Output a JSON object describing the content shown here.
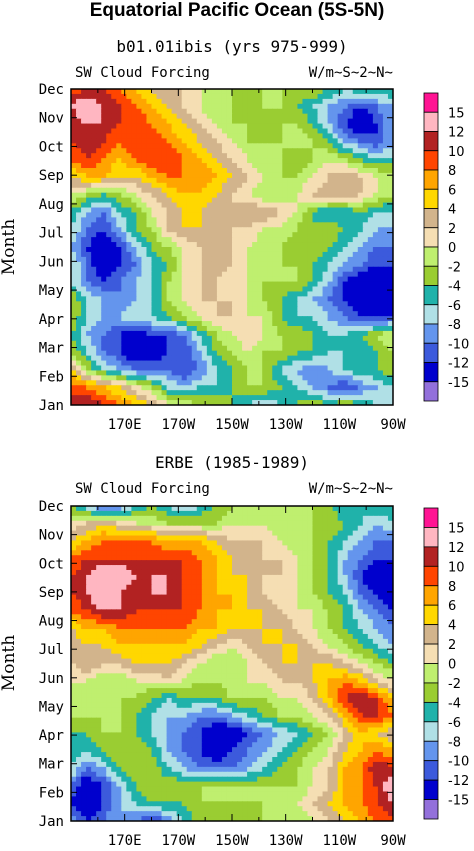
{
  "page_title": "Equatorial Pacific Ocean (5S-5N)",
  "colors": {
    "levels": [
      "#9370db",
      "#0000cd",
      "#3c5adc",
      "#6495ed",
      "#b0e0e6",
      "#20b2aa",
      "#9acd32",
      "#bfef6f",
      "#f5deb3",
      "#d2b48c",
      "#ffd700",
      "#ffa500",
      "#ff4500",
      "#b22222",
      "#ffb6c1",
      "#ff1493"
    ]
  },
  "chart_data": [
    {
      "type": "contour",
      "title": "b01.01ibis (yrs 975-999)",
      "left_label": "SW Cloud Forcing",
      "right_label": "W/m~S~2~N~",
      "ylabel": "Month",
      "x_ticks": [
        "170E",
        "170W",
        "150W",
        "130W",
        "110W",
        "90W"
      ],
      "y_ticks": [
        "Jan",
        "Feb",
        "Mar",
        "Apr",
        "May",
        "Jun",
        "Jul",
        "Aug",
        "Sep",
        "Oct",
        "Nov",
        "Dec"
      ],
      "colorbar_labels": [
        "15",
        "12",
        "10",
        "8",
        "6",
        "4",
        "2",
        "0",
        "-2",
        "-4",
        "-6",
        "-8",
        "-10",
        "-12",
        "-15"
      ],
      "grid_rows_month_jan_to_dec": [
        [
          10,
          12,
          10,
          8,
          6,
          4,
          1,
          0,
          -2,
          -2,
          -4,
          -6,
          -8,
          -6,
          -4,
          -2,
          -4,
          -2,
          -4,
          -6,
          -6
        ],
        [
          10,
          8,
          6,
          4,
          1,
          -2,
          -6,
          -8,
          -6,
          -6,
          -4,
          -2,
          -2,
          -4,
          -6,
          -8,
          -10,
          -12,
          -10,
          -8,
          -6
        ],
        [
          4,
          -2,
          -6,
          -8,
          -10,
          -10,
          -10,
          -12,
          -10,
          -6,
          -4,
          -2,
          -2,
          -6,
          -8,
          -10,
          -8,
          -6,
          -4,
          -4,
          -2
        ],
        [
          -2,
          -6,
          -10,
          -12,
          -15,
          -15,
          -12,
          -12,
          -8,
          -4,
          -2,
          0,
          -2,
          -2,
          -4,
          -4,
          -6,
          -6,
          -6,
          -4,
          -2
        ],
        [
          -4,
          -8,
          -10,
          -12,
          -15,
          -12,
          -12,
          -10,
          -6,
          -2,
          0,
          2,
          0,
          -2,
          -2,
          -4,
          -6,
          -6,
          -4,
          -2,
          0
        ],
        [
          -2,
          -6,
          -8,
          -8,
          -6,
          -6,
          -4,
          -2,
          0,
          2,
          2,
          0,
          0,
          -4,
          -6,
          -6,
          -8,
          -10,
          -12,
          -12,
          -12
        ],
        [
          -2,
          -6,
          -8,
          -10,
          -8,
          -6,
          -2,
          0,
          2,
          2,
          2,
          0,
          -2,
          -4,
          -6,
          -8,
          -10,
          -12,
          -15,
          -15,
          -15
        ],
        [
          -6,
          -10,
          -12,
          -10,
          -8,
          -6,
          -2,
          0,
          2,
          2,
          0,
          0,
          -2,
          -2,
          -2,
          -4,
          -8,
          -12,
          -15,
          -15,
          -15
        ],
        [
          -6,
          -10,
          -15,
          -12,
          -10,
          -6,
          -4,
          0,
          2,
          4,
          2,
          0,
          -2,
          -2,
          -2,
          -4,
          -6,
          -8,
          -10,
          -12,
          -12
        ],
        [
          -8,
          -12,
          -15,
          -12,
          -8,
          -4,
          -2,
          0,
          2,
          4,
          2,
          0,
          -2,
          -2,
          -4,
          -2,
          -4,
          -6,
          -8,
          -10,
          -10
        ],
        [
          -6,
          -10,
          -12,
          -8,
          -4,
          -2,
          2,
          4,
          4,
          4,
          2,
          2,
          0,
          0,
          -2,
          -4,
          -2,
          -4,
          -6,
          -8,
          -8
        ],
        [
          -4,
          -8,
          -10,
          -6,
          -4,
          0,
          2,
          4,
          4,
          2,
          2,
          4,
          4,
          2,
          0,
          -4,
          -6,
          -6,
          -4,
          -6,
          -6
        ],
        [
          0,
          -2,
          -4,
          -2,
          0,
          2,
          4,
          6,
          6,
          4,
          2,
          0,
          -2,
          -2,
          0,
          2,
          4,
          4,
          2,
          0,
          -2
        ],
        [
          4,
          6,
          6,
          4,
          4,
          6,
          8,
          8,
          8,
          6,
          4,
          2,
          0,
          -2,
          -2,
          0,
          2,
          4,
          2,
          0,
          0
        ],
        [
          8,
          10,
          8,
          6,
          8,
          10,
          10,
          8,
          6,
          4,
          2,
          0,
          -2,
          -2,
          -4,
          -2,
          0,
          -2,
          -4,
          -6,
          -6
        ],
        [
          10,
          12,
          10,
          8,
          10,
          10,
          8,
          6,
          4,
          2,
          0,
          -2,
          -2,
          -2,
          0,
          -2,
          -4,
          -8,
          -10,
          -12,
          -8
        ],
        [
          10,
          12,
          12,
          10,
          10,
          8,
          6,
          4,
          2,
          0,
          -2,
          -2,
          -4,
          -2,
          -2,
          -4,
          -8,
          -12,
          -15,
          -12,
          -8
        ],
        [
          12,
          15,
          12,
          10,
          8,
          6,
          4,
          2,
          0,
          -2,
          -2,
          -4,
          -2,
          -2,
          -4,
          -6,
          -8,
          -10,
          -12,
          -10,
          -8
        ],
        [
          8,
          10,
          10,
          8,
          6,
          4,
          2,
          2,
          0,
          -2,
          -2,
          -2,
          -2,
          -2,
          -2,
          -2,
          -4,
          -6,
          -4,
          -4,
          -4
        ]
      ]
    },
    {
      "type": "contour",
      "title": "ERBE (1985-1989)",
      "left_label": "SW Cloud Forcing",
      "right_label": "W/m~S~2~N~",
      "ylabel": "Month",
      "x_ticks": [
        "170E",
        "170W",
        "150W",
        "130W",
        "110W",
        "90W"
      ],
      "y_ticks": [
        "Jan",
        "Feb",
        "Mar",
        "Apr",
        "May",
        "Jun",
        "Jul",
        "Aug",
        "Sep",
        "Oct",
        "Nov",
        "Dec"
      ],
      "colorbar_labels": [
        "15",
        "12",
        "10",
        "8",
        "6",
        "4",
        "2",
        "0",
        "-2",
        "-4",
        "-6",
        "-8",
        "-10",
        "-12",
        "-15"
      ],
      "grid_rows_month_jan_to_dec": [
        [
          -8,
          -12,
          -10,
          -8,
          -10,
          -12,
          -10,
          -6,
          -2,
          -4,
          -4,
          -4,
          -2,
          -2,
          -2,
          0,
          2,
          4,
          6,
          8,
          10
        ],
        [
          -12,
          -15,
          -12,
          -8,
          -6,
          -4,
          -4,
          -4,
          -2,
          -2,
          -2,
          -2,
          -2,
          -2,
          0,
          2,
          4,
          6,
          8,
          10,
          12
        ],
        [
          -10,
          -15,
          -12,
          -8,
          -4,
          -2,
          -2,
          -2,
          -2,
          -2,
          -2,
          -2,
          -2,
          -2,
          -2,
          0,
          2,
          6,
          8,
          10,
          15
        ],
        [
          -6,
          -10,
          -8,
          -4,
          -2,
          -2,
          -6,
          -8,
          -10,
          -10,
          -10,
          -8,
          -6,
          -4,
          -2,
          0,
          2,
          6,
          8,
          12,
          10
        ],
        [
          -4,
          -6,
          -4,
          -2,
          -2,
          -4,
          -8,
          -10,
          -12,
          -15,
          -12,
          -10,
          -8,
          -6,
          -4,
          -2,
          0,
          4,
          6,
          8,
          6
        ],
        [
          -4,
          -4,
          -2,
          -2,
          -4,
          -6,
          -8,
          -10,
          -12,
          -15,
          -15,
          -12,
          -10,
          -8,
          -6,
          -4,
          -2,
          2,
          6,
          4,
          2
        ],
        [
          -2,
          -2,
          -2,
          -2,
          -4,
          -6,
          -8,
          -8,
          -10,
          -10,
          -8,
          -6,
          -4,
          -2,
          -2,
          0,
          2,
          6,
          10,
          10,
          8
        ],
        [
          -2,
          -2,
          -2,
          -2,
          -2,
          -4,
          -6,
          -4,
          -4,
          -4,
          -2,
          -2,
          -2,
          0,
          0,
          2,
          6,
          10,
          12,
          10,
          6
        ],
        [
          0,
          0,
          -2,
          -2,
          0,
          0,
          2,
          0,
          -2,
          -2,
          0,
          0,
          0,
          2,
          2,
          4,
          6,
          8,
          6,
          2,
          0
        ],
        [
          2,
          4,
          2,
          2,
          4,
          4,
          4,
          2,
          0,
          -2,
          -2,
          0,
          2,
          4,
          4,
          4,
          4,
          2,
          0,
          -2,
          -4
        ],
        [
          2,
          4,
          4,
          6,
          6,
          6,
          6,
          6,
          4,
          2,
          0,
          2,
          4,
          4,
          4,
          2,
          0,
          -2,
          -4,
          -6,
          -8
        ],
        [
          4,
          6,
          6,
          8,
          8,
          8,
          8,
          8,
          6,
          6,
          4,
          4,
          4,
          4,
          2,
          0,
          -2,
          -4,
          -6,
          -8,
          -10
        ],
        [
          8,
          10,
          12,
          12,
          10,
          10,
          10,
          10,
          8,
          6,
          6,
          4,
          4,
          2,
          0,
          0,
          -2,
          -4,
          -8,
          -10,
          -12
        ],
        [
          10,
          12,
          15,
          12,
          10,
          12,
          12,
          10,
          8,
          6,
          6,
          4,
          2,
          0,
          0,
          -2,
          -4,
          -6,
          -10,
          -12,
          -15
        ],
        [
          10,
          12,
          15,
          15,
          12,
          12,
          12,
          10,
          8,
          6,
          4,
          4,
          2,
          2,
          0,
          -2,
          -4,
          -8,
          -12,
          -15,
          -15
        ],
        [
          8,
          10,
          10,
          10,
          10,
          10,
          10,
          10,
          8,
          6,
          4,
          2,
          2,
          2,
          0,
          -2,
          -4,
          -8,
          -10,
          -12,
          -12
        ],
        [
          4,
          6,
          8,
          8,
          8,
          8,
          6,
          6,
          6,
          4,
          2,
          2,
          2,
          0,
          -2,
          -2,
          -4,
          -6,
          -8,
          -10,
          -10
        ],
        [
          0,
          2,
          4,
          2,
          0,
          0,
          -2,
          -2,
          -2,
          -2,
          0,
          0,
          0,
          -2,
          -2,
          -2,
          -2,
          -4,
          -6,
          -8,
          -6
        ],
        [
          -4,
          -8,
          -12,
          -10,
          -6,
          -4,
          -6,
          -8,
          -6,
          -4,
          -2,
          -2,
          -2,
          -2,
          -2,
          -2,
          -4,
          -6,
          -6,
          -4,
          -4
        ]
      ]
    }
  ]
}
